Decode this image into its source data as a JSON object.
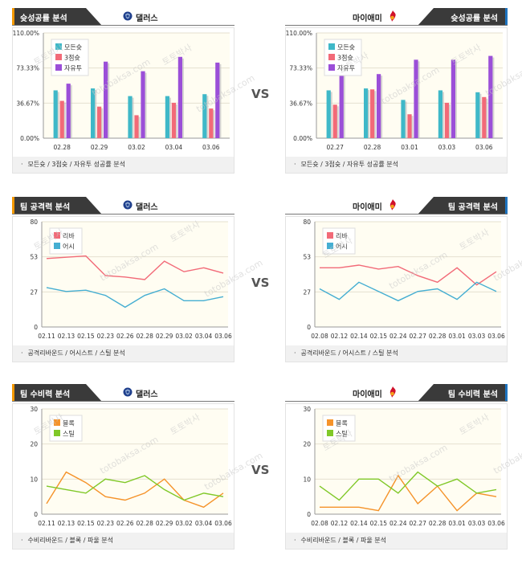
{
  "vs_label": "VS",
  "colors": {
    "header_dark": "#3a3a3a",
    "accent_orange": "#f39800",
    "accent_blue": "#1e73be",
    "bar_win": "#3fb8c8",
    "bar_3p": "#f26a78",
    "bar_ft": "#9b4fd8",
    "line_rebound": "#f26a78",
    "line_assist": "#45aed2",
    "line_block": "#f5932a",
    "line_steal": "#80c828",
    "plot_bg": "#fffdf2"
  },
  "sections": [
    {
      "title": "슛성공률 분석",
      "footer": "모든슛 / 3점슛 / 자유투 성공률 분석",
      "left": {
        "team": "댈러스",
        "logo": "mavericks-icon",
        "chart_data": {
          "type": "bar",
          "categories": [
            "02.28",
            "02.29",
            "03.02",
            "03.04",
            "03.06"
          ],
          "ylim": [
            0,
            110
          ],
          "yticks": [
            "0.00%",
            "36.67%",
            "73.33%",
            "110.00%"
          ],
          "series": [
            {
              "name": "모든슛",
              "values": [
                50,
                52,
                44,
                44,
                46
              ]
            },
            {
              "name": "3점슛",
              "values": [
                39,
                33,
                24,
                37,
                31
              ]
            },
            {
              "name": "자유투",
              "values": [
                57,
                80,
                70,
                85,
                79
              ]
            }
          ]
        }
      },
      "right": {
        "team": "마이애미",
        "logo": "heat-icon",
        "chart_data": {
          "type": "bar",
          "categories": [
            "02.27",
            "02.28",
            "03.01",
            "03.03",
            "03.06"
          ],
          "ylim": [
            0,
            110
          ],
          "yticks": [
            "0.00%",
            "36.67%",
            "73.33%",
            "110.00%"
          ],
          "series": [
            {
              "name": "모든슛",
              "values": [
                50,
                52,
                40,
                50,
                48
              ]
            },
            {
              "name": "3점슛",
              "values": [
                35,
                51,
                25,
                37,
                43
              ]
            },
            {
              "name": "자유투",
              "values": [
                75,
                67,
                82,
                82,
                86
              ]
            }
          ]
        }
      }
    },
    {
      "title": "팀 공격력 분석",
      "footer": "공격리바운드 / 어시스트 / 스틸 분석",
      "left": {
        "team": "댈러스",
        "logo": "mavericks-icon",
        "chart_data": {
          "type": "line",
          "x": [
            "02.11",
            "02.13",
            "02.15",
            "02.23",
            "02.26",
            "02.28",
            "02.29",
            "03.02",
            "03.04",
            "03.06"
          ],
          "ylim": [
            0,
            80
          ],
          "yticks": [
            "0",
            "27",
            "53",
            "80"
          ],
          "series": [
            {
              "name": "리바",
              "values": [
                52,
                53,
                54,
                39,
                38,
                36,
                50,
                42,
                45,
                41
              ]
            },
            {
              "name": "어시",
              "values": [
                30,
                27,
                28,
                24,
                15,
                24,
                29,
                20,
                20,
                23
              ]
            }
          ]
        }
      },
      "right": {
        "team": "마이애미",
        "logo": "heat-icon",
        "chart_data": {
          "type": "line",
          "x": [
            "02.08",
            "02.12",
            "02.14",
            "02.15",
            "02.24",
            "02.27",
            "02.28",
            "03.01",
            "03.03",
            "03.06"
          ],
          "ylim": [
            0,
            80
          ],
          "yticks": [
            "0",
            "27",
            "53",
            "80"
          ],
          "series": [
            {
              "name": "리바",
              "values": [
                45,
                45,
                47,
                44,
                46,
                39,
                34,
                45,
                32,
                42
              ]
            },
            {
              "name": "어시",
              "values": [
                29,
                21,
                34,
                27,
                20,
                27,
                29,
                21,
                34,
                27
              ]
            }
          ]
        }
      }
    },
    {
      "title": "팀 수비력 분석",
      "footer": "수비리바운드 / 블록 / 파울 분석",
      "left": {
        "team": "댈러스",
        "logo": "mavericks-icon",
        "chart_data": {
          "type": "line",
          "x": [
            "02.11",
            "02.13",
            "02.15",
            "02.23",
            "02.26",
            "02.28",
            "02.29",
            "03.02",
            "03.04",
            "03.06"
          ],
          "ylim": [
            0,
            30
          ],
          "yticks": [
            "0",
            "10",
            "20",
            "30"
          ],
          "series": [
            {
              "name": "블록",
              "values": [
                3,
                12,
                9,
                5,
                4,
                6,
                10,
                4,
                2,
                6
              ]
            },
            {
              "name": "스틸",
              "values": [
                8,
                7,
                6,
                10,
                9,
                11,
                7,
                4,
                6,
                5
              ]
            }
          ]
        }
      },
      "right": {
        "team": "마이애미",
        "logo": "heat-icon",
        "chart_data": {
          "type": "line",
          "x": [
            "02.08",
            "02.12",
            "02.14",
            "02.15",
            "02.24",
            "02.27",
            "02.28",
            "03.01",
            "03.03",
            "03.06"
          ],
          "ylim": [
            0,
            30
          ],
          "yticks": [
            "0",
            "10",
            "20",
            "30"
          ],
          "series": [
            {
              "name": "블록",
              "values": [
                2,
                2,
                2,
                1,
                11,
                3,
                8,
                1,
                6,
                5
              ]
            },
            {
              "name": "스틸",
              "values": [
                8,
                4,
                10,
                10,
                6,
                12,
                8,
                10,
                6,
                7
              ]
            }
          ]
        }
      }
    }
  ]
}
